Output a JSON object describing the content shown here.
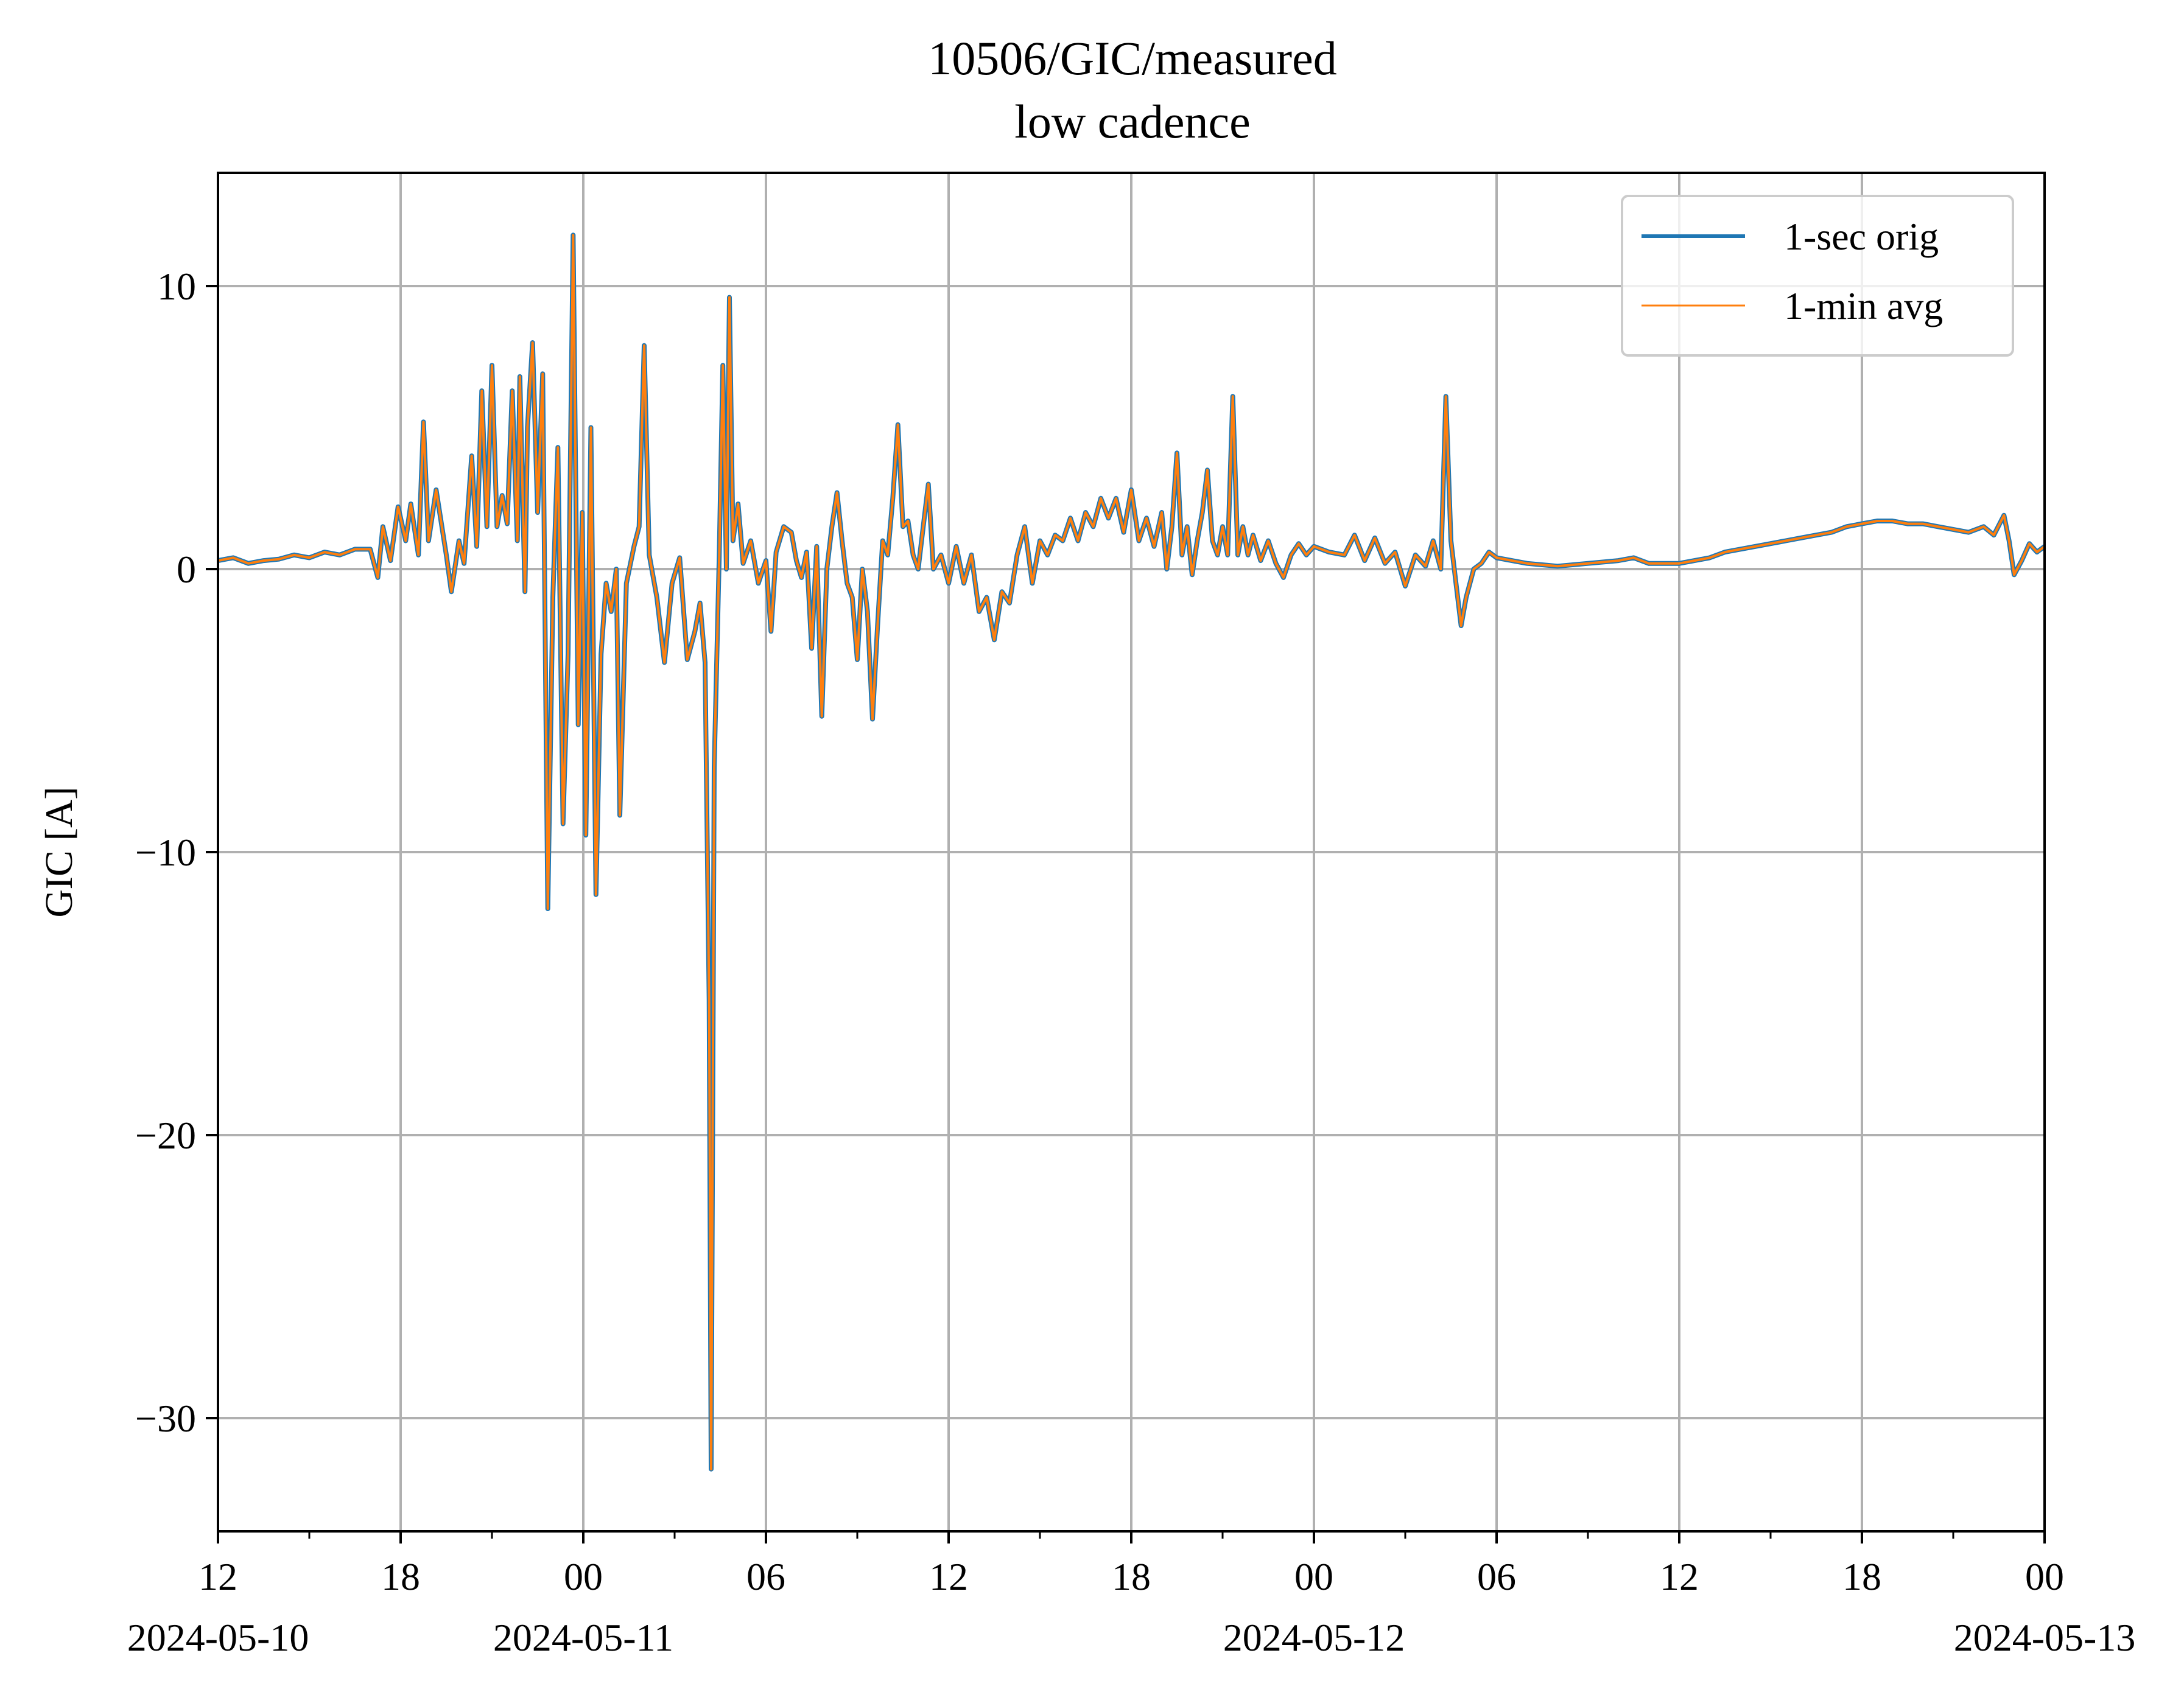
{
  "chart_data": {
    "type": "line",
    "title": "10506/GIC/measured",
    "subtitle": "low cadence",
    "xlabel": "",
    "ylabel": "GIC [A]",
    "x_range": [
      "2024-05-10T12:00",
      "2024-05-13T00:00"
    ],
    "ylim": [
      -34,
      14
    ],
    "grid": true,
    "legend_position": "top-right",
    "x_ticks": [
      {
        "t": "2024-05-10T12:00",
        "label": "12",
        "date": "2024-05-10"
      },
      {
        "t": "2024-05-10T18:00",
        "label": "18",
        "date": ""
      },
      {
        "t": "2024-05-11T00:00",
        "label": "00",
        "date": "2024-05-11"
      },
      {
        "t": "2024-05-11T06:00",
        "label": "06",
        "date": ""
      },
      {
        "t": "2024-05-11T12:00",
        "label": "12",
        "date": ""
      },
      {
        "t": "2024-05-11T18:00",
        "label": "18",
        "date": ""
      },
      {
        "t": "2024-05-12T00:00",
        "label": "00",
        "date": "2024-05-12"
      },
      {
        "t": "2024-05-12T06:00",
        "label": "06",
        "date": ""
      },
      {
        "t": "2024-05-12T12:00",
        "label": "12",
        "date": ""
      },
      {
        "t": "2024-05-12T18:00",
        "label": "18",
        "date": ""
      },
      {
        "t": "2024-05-13T00:00",
        "label": "00",
        "date": "2024-05-13"
      }
    ],
    "minor_ticks": [
      "2024-05-10T15:00",
      "2024-05-10T21:00",
      "2024-05-11T03:00",
      "2024-05-11T09:00",
      "2024-05-11T15:00",
      "2024-05-11T21:00",
      "2024-05-12T03:00",
      "2024-05-12T09:00",
      "2024-05-12T15:00",
      "2024-05-12T21:00"
    ],
    "y_ticks": [
      {
        "value": 10,
        "label": "10"
      },
      {
        "value": 0,
        "label": "0"
      },
      {
        "value": -10,
        "label": "−10"
      },
      {
        "value": -20,
        "label": "−20"
      },
      {
        "value": -30,
        "label": "−30"
      }
    ],
    "series": [
      {
        "name": "1-sec orig",
        "color": "#1f77b4"
      },
      {
        "name": "1-min avg",
        "color": "#ff7f0e"
      }
    ],
    "points": [
      [
        "2024-05-10T12:00",
        0.3
      ],
      [
        "2024-05-10T12:30",
        0.4
      ],
      [
        "2024-05-10T13:00",
        0.2
      ],
      [
        "2024-05-10T13:30",
        0.3
      ],
      [
        "2024-05-10T14:00",
        0.35
      ],
      [
        "2024-05-10T14:30",
        0.5
      ],
      [
        "2024-05-10T15:00",
        0.4
      ],
      [
        "2024-05-10T15:30",
        0.6
      ],
      [
        "2024-05-10T16:00",
        0.5
      ],
      [
        "2024-05-10T16:30",
        0.7
      ],
      [
        "2024-05-10T17:00",
        0.7
      ],
      [
        "2024-05-10T17:15",
        -0.3
      ],
      [
        "2024-05-10T17:25",
        1.5
      ],
      [
        "2024-05-10T17:40",
        0.3
      ],
      [
        "2024-05-10T17:55",
        2.2
      ],
      [
        "2024-05-10T18:10",
        1.0
      ],
      [
        "2024-05-10T18:20",
        2.3
      ],
      [
        "2024-05-10T18:35",
        0.5
      ],
      [
        "2024-05-10T18:45",
        5.2
      ],
      [
        "2024-05-10T18:55",
        1.0
      ],
      [
        "2024-05-10T19:10",
        2.8
      ],
      [
        "2024-05-10T19:30",
        0.5
      ],
      [
        "2024-05-10T19:40",
        -0.8
      ],
      [
        "2024-05-10T19:55",
        1.0
      ],
      [
        "2024-05-10T20:05",
        0.2
      ],
      [
        "2024-05-10T20:20",
        4.0
      ],
      [
        "2024-05-10T20:30",
        0.8
      ],
      [
        "2024-05-10T20:40",
        6.3
      ],
      [
        "2024-05-10T20:50",
        1.5
      ],
      [
        "2024-05-10T21:00",
        7.2
      ],
      [
        "2024-05-10T21:10",
        1.5
      ],
      [
        "2024-05-10T21:20",
        2.6
      ],
      [
        "2024-05-10T21:30",
        1.6
      ],
      [
        "2024-05-10T21:40",
        6.3
      ],
      [
        "2024-05-10T21:50",
        1.0
      ],
      [
        "2024-05-10T21:55",
        6.8
      ],
      [
        "2024-05-10T22:05",
        -0.8
      ],
      [
        "2024-05-10T22:10",
        5.0
      ],
      [
        "2024-05-10T22:20",
        8.0
      ],
      [
        "2024-05-10T22:30",
        2.0
      ],
      [
        "2024-05-10T22:40",
        6.9
      ],
      [
        "2024-05-10T22:50",
        -12.0
      ],
      [
        "2024-05-10T23:00",
        -1.0
      ],
      [
        "2024-05-10T23:10",
        4.3
      ],
      [
        "2024-05-10T23:20",
        -9.0
      ],
      [
        "2024-05-10T23:30",
        -3.0
      ],
      [
        "2024-05-10T23:40",
        11.8
      ],
      [
        "2024-05-10T23:50",
        -5.5
      ],
      [
        "2024-05-10T23:58",
        2.0
      ],
      [
        "2024-05-11T00:05",
        -9.4
      ],
      [
        "2024-05-11T00:15",
        5.0
      ],
      [
        "2024-05-11T00:25",
        -11.5
      ],
      [
        "2024-05-11T00:35",
        -3.0
      ],
      [
        "2024-05-11T00:45",
        -0.5
      ],
      [
        "2024-05-11T00:55",
        -1.5
      ],
      [
        "2024-05-11T01:05",
        0.0
      ],
      [
        "2024-05-11T01:12",
        -8.7
      ],
      [
        "2024-05-11T01:25",
        -0.5
      ],
      [
        "2024-05-11T01:40",
        0.8
      ],
      [
        "2024-05-11T01:50",
        1.5
      ],
      [
        "2024-05-11T02:00",
        7.9
      ],
      [
        "2024-05-11T02:10",
        0.5
      ],
      [
        "2024-05-11T02:25",
        -1.0
      ],
      [
        "2024-05-11T02:40",
        -3.3
      ],
      [
        "2024-05-11T02:55",
        -0.5
      ],
      [
        "2024-05-11T03:10",
        0.4
      ],
      [
        "2024-05-11T03:25",
        -3.2
      ],
      [
        "2024-05-11T03:40",
        -2.2
      ],
      [
        "2024-05-11T03:50",
        -1.2
      ],
      [
        "2024-05-11T04:00",
        -3.3
      ],
      [
        "2024-05-11T04:08",
        -15.2
      ],
      [
        "2024-05-11T04:12",
        -31.8
      ],
      [
        "2024-05-11T04:18",
        -7.0
      ],
      [
        "2024-05-11T04:28",
        0.5
      ],
      [
        "2024-05-11T04:35",
        7.2
      ],
      [
        "2024-05-11T04:42",
        0.0
      ],
      [
        "2024-05-11T04:48",
        9.6
      ],
      [
        "2024-05-11T04:55",
        1.0
      ],
      [
        "2024-05-11T05:05",
        2.3
      ],
      [
        "2024-05-11T05:15",
        0.2
      ],
      [
        "2024-05-11T05:30",
        1.0
      ],
      [
        "2024-05-11T05:45",
        -0.5
      ],
      [
        "2024-05-11T06:00",
        0.3
      ],
      [
        "2024-05-11T06:10",
        -2.2
      ],
      [
        "2024-05-11T06:20",
        0.6
      ],
      [
        "2024-05-11T06:35",
        1.5
      ],
      [
        "2024-05-11T06:50",
        1.3
      ],
      [
        "2024-05-11T07:00",
        0.3
      ],
      [
        "2024-05-11T07:10",
        -0.3
      ],
      [
        "2024-05-11T07:20",
        0.6
      ],
      [
        "2024-05-11T07:30",
        -2.8
      ],
      [
        "2024-05-11T07:40",
        0.8
      ],
      [
        "2024-05-11T07:50",
        -5.2
      ],
      [
        "2024-05-11T08:00",
        0.0
      ],
      [
        "2024-05-11T08:10",
        1.5
      ],
      [
        "2024-05-11T08:20",
        2.7
      ],
      [
        "2024-05-11T08:30",
        1.0
      ],
      [
        "2024-05-11T08:40",
        -0.5
      ],
      [
        "2024-05-11T08:50",
        -1.0
      ],
      [
        "2024-05-11T09:00",
        -3.2
      ],
      [
        "2024-05-11T09:10",
        0.0
      ],
      [
        "2024-05-11T09:20",
        -1.5
      ],
      [
        "2024-05-11T09:30",
        -5.3
      ],
      [
        "2024-05-11T09:40",
        -2.0
      ],
      [
        "2024-05-11T09:50",
        1.0
      ],
      [
        "2024-05-11T10:00",
        0.5
      ],
      [
        "2024-05-11T10:10",
        2.5
      ],
      [
        "2024-05-11T10:20",
        5.1
      ],
      [
        "2024-05-11T10:30",
        1.5
      ],
      [
        "2024-05-11T10:40",
        1.7
      ],
      [
        "2024-05-11T10:50",
        0.5
      ],
      [
        "2024-05-11T11:00",
        0.0
      ],
      [
        "2024-05-11T11:10",
        1.5
      ],
      [
        "2024-05-11T11:20",
        3.0
      ],
      [
        "2024-05-11T11:30",
        0.0
      ],
      [
        "2024-05-11T11:45",
        0.5
      ],
      [
        "2024-05-11T12:00",
        -0.5
      ],
      [
        "2024-05-11T12:15",
        0.8
      ],
      [
        "2024-05-11T12:30",
        -0.5
      ],
      [
        "2024-05-11T12:45",
        0.5
      ],
      [
        "2024-05-11T13:00",
        -1.5
      ],
      [
        "2024-05-11T13:15",
        -1.0
      ],
      [
        "2024-05-11T13:30",
        -2.5
      ],
      [
        "2024-05-11T13:45",
        -0.8
      ],
      [
        "2024-05-11T14:00",
        -1.2
      ],
      [
        "2024-05-11T14:15",
        0.5
      ],
      [
        "2024-05-11T14:30",
        1.5
      ],
      [
        "2024-05-11T14:45",
        -0.5
      ],
      [
        "2024-05-11T15:00",
        1.0
      ],
      [
        "2024-05-11T15:15",
        0.5
      ],
      [
        "2024-05-11T15:30",
        1.2
      ],
      [
        "2024-05-11T15:45",
        1.0
      ],
      [
        "2024-05-11T16:00",
        1.8
      ],
      [
        "2024-05-11T16:15",
        1.0
      ],
      [
        "2024-05-11T16:30",
        2.0
      ],
      [
        "2024-05-11T16:45",
        1.5
      ],
      [
        "2024-05-11T17:00",
        2.5
      ],
      [
        "2024-05-11T17:15",
        1.8
      ],
      [
        "2024-05-11T17:30",
        2.5
      ],
      [
        "2024-05-11T17:45",
        1.3
      ],
      [
        "2024-05-11T18:00",
        2.8
      ],
      [
        "2024-05-11T18:15",
        1.0
      ],
      [
        "2024-05-11T18:30",
        1.8
      ],
      [
        "2024-05-11T18:45",
        0.8
      ],
      [
        "2024-05-11T19:00",
        2.0
      ],
      [
        "2024-05-11T19:10",
        0.0
      ],
      [
        "2024-05-11T19:20",
        1.5
      ],
      [
        "2024-05-11T19:30",
        4.1
      ],
      [
        "2024-05-11T19:40",
        0.5
      ],
      [
        "2024-05-11T19:50",
        1.5
      ],
      [
        "2024-05-11T20:00",
        -0.2
      ],
      [
        "2024-05-11T20:10",
        1.0
      ],
      [
        "2024-05-11T20:20",
        2.0
      ],
      [
        "2024-05-11T20:30",
        3.5
      ],
      [
        "2024-05-11T20:40",
        1.0
      ],
      [
        "2024-05-11T20:50",
        0.5
      ],
      [
        "2024-05-11T21:00",
        1.5
      ],
      [
        "2024-05-11T21:10",
        0.5
      ],
      [
        "2024-05-11T21:20",
        6.1
      ],
      [
        "2024-05-11T21:30",
        0.5
      ],
      [
        "2024-05-11T21:40",
        1.5
      ],
      [
        "2024-05-11T21:50",
        0.5
      ],
      [
        "2024-05-11T22:00",
        1.2
      ],
      [
        "2024-05-11T22:15",
        0.3
      ],
      [
        "2024-05-11T22:30",
        1.0
      ],
      [
        "2024-05-11T22:45",
        0.2
      ],
      [
        "2024-05-11T23:00",
        -0.3
      ],
      [
        "2024-05-11T23:15",
        0.5
      ],
      [
        "2024-05-11T23:30",
        0.9
      ],
      [
        "2024-05-11T23:45",
        0.5
      ],
      [
        "2024-05-12T00:00",
        0.8
      ],
      [
        "2024-05-12T00:30",
        0.6
      ],
      [
        "2024-05-12T01:00",
        0.5
      ],
      [
        "2024-05-12T01:20",
        1.2
      ],
      [
        "2024-05-12T01:40",
        0.3
      ],
      [
        "2024-05-12T02:00",
        1.1
      ],
      [
        "2024-05-12T02:20",
        0.2
      ],
      [
        "2024-05-12T02:40",
        0.6
      ],
      [
        "2024-05-12T03:00",
        -0.6
      ],
      [
        "2024-05-12T03:20",
        0.5
      ],
      [
        "2024-05-12T03:40",
        0.1
      ],
      [
        "2024-05-12T03:55",
        1.0
      ],
      [
        "2024-05-12T04:10",
        0.0
      ],
      [
        "2024-05-12T04:20",
        6.1
      ],
      [
        "2024-05-12T04:30",
        1.0
      ],
      [
        "2024-05-12T04:40",
        -0.5
      ],
      [
        "2024-05-12T04:50",
        -2.0
      ],
      [
        "2024-05-12T05:00",
        -1.0
      ],
      [
        "2024-05-12T05:15",
        0.0
      ],
      [
        "2024-05-12T05:30",
        0.2
      ],
      [
        "2024-05-12T05:45",
        0.6
      ],
      [
        "2024-05-12T06:00",
        0.4
      ],
      [
        "2024-05-12T07:00",
        0.2
      ],
      [
        "2024-05-12T08:00",
        0.1
      ],
      [
        "2024-05-12T09:00",
        0.2
      ],
      [
        "2024-05-12T10:00",
        0.3
      ],
      [
        "2024-05-12T10:30",
        0.4
      ],
      [
        "2024-05-12T11:00",
        0.2
      ],
      [
        "2024-05-12T12:00",
        0.2
      ],
      [
        "2024-05-12T12:30",
        0.3
      ],
      [
        "2024-05-12T13:00",
        0.4
      ],
      [
        "2024-05-12T13:30",
        0.6
      ],
      [
        "2024-05-12T14:00",
        0.7
      ],
      [
        "2024-05-12T14:30",
        0.8
      ],
      [
        "2024-05-12T15:00",
        0.9
      ],
      [
        "2024-05-12T15:30",
        1.0
      ],
      [
        "2024-05-12T16:00",
        1.1
      ],
      [
        "2024-05-12T16:30",
        1.2
      ],
      [
        "2024-05-12T17:00",
        1.3
      ],
      [
        "2024-05-12T17:30",
        1.5
      ],
      [
        "2024-05-12T18:00",
        1.6
      ],
      [
        "2024-05-12T18:30",
        1.7
      ],
      [
        "2024-05-12T19:00",
        1.7
      ],
      [
        "2024-05-12T19:30",
        1.6
      ],
      [
        "2024-05-12T20:00",
        1.6
      ],
      [
        "2024-05-12T20:30",
        1.5
      ],
      [
        "2024-05-12T21:00",
        1.4
      ],
      [
        "2024-05-12T21:30",
        1.3
      ],
      [
        "2024-05-12T22:00",
        1.5
      ],
      [
        "2024-05-12T22:20",
        1.2
      ],
      [
        "2024-05-12T22:40",
        1.9
      ],
      [
        "2024-05-12T22:50",
        1.0
      ],
      [
        "2024-05-12T23:00",
        -0.2
      ],
      [
        "2024-05-12T23:15",
        0.3
      ],
      [
        "2024-05-12T23:30",
        0.9
      ],
      [
        "2024-05-12T23:45",
        0.6
      ],
      [
        "2024-05-13T00:00",
        0.8
      ]
    ]
  }
}
